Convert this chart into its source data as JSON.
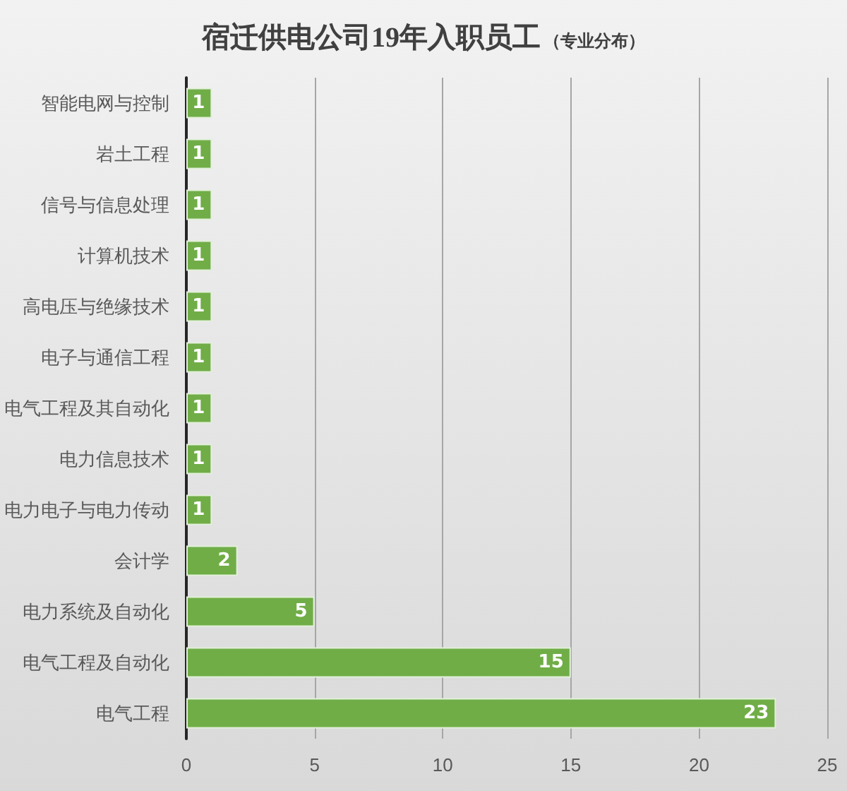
{
  "chart_data": {
    "type": "bar",
    "orientation": "horizontal",
    "title": "宿迁供电公司19年入职员工",
    "subtitle": "（专业分布）",
    "categories": [
      "智能电网与控制",
      "岩土工程",
      "信号与信息处理",
      "计算机技术",
      "高电压与绝缘技术",
      "电子与通信工程",
      "电气工程及其自动化",
      "电力信息技术",
      "电力电子与电力传动",
      "会计学",
      "电力系统及自动化",
      "电气工程及自动化",
      "电气工程"
    ],
    "values": [
      1,
      1,
      1,
      1,
      1,
      1,
      1,
      1,
      1,
      2,
      5,
      15,
      23
    ],
    "color": "#70ad47",
    "xlim": [
      0,
      25
    ],
    "xticks": [
      0,
      5,
      10,
      15,
      20,
      25
    ],
    "grid": "x",
    "data_labels": true
  }
}
